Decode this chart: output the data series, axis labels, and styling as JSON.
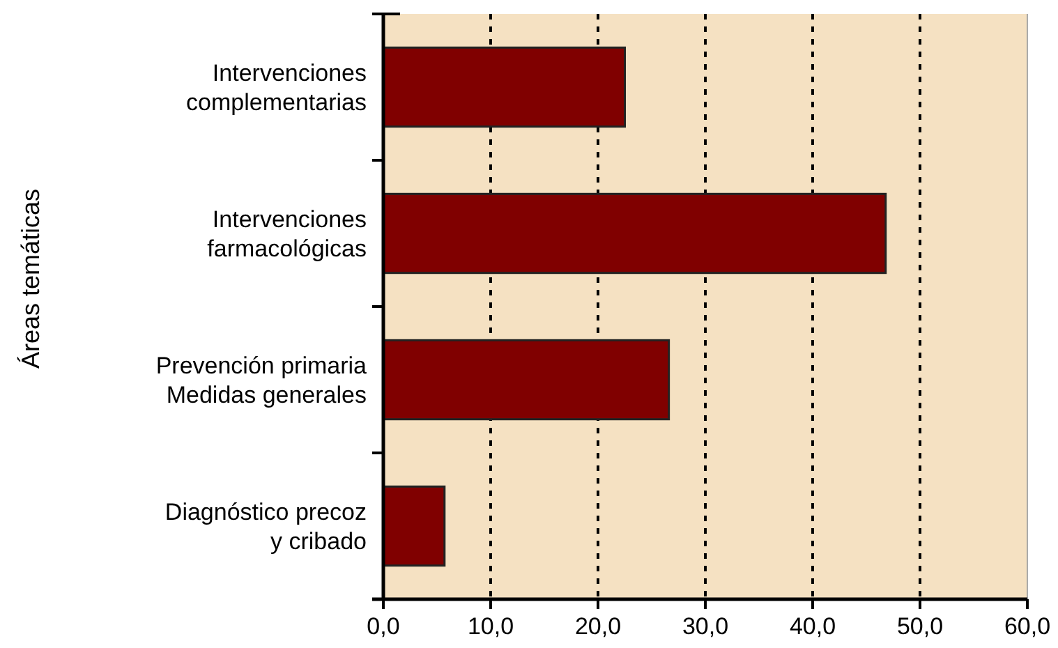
{
  "chart_data": {
    "type": "bar",
    "orientation": "horizontal",
    "ylabel": "Áreas temáticas",
    "categories": [
      "Intervenciones\ncomplementarias",
      "Intervenciones\nfarmacológicas",
      "Prevención primaria\nMedidas generales",
      "Diagnóstico precoz\ny cribado"
    ],
    "values": [
      22.5,
      46.8,
      26.6,
      5.7
    ],
    "color": "#800000",
    "xlim": [
      0,
      60
    ],
    "xticks": [
      {
        "value": 0,
        "label": "0,0"
      },
      {
        "value": 10,
        "label": "10,0"
      },
      {
        "value": 20,
        "label": "20,0"
      },
      {
        "value": 30,
        "label": "30,0"
      },
      {
        "value": 40,
        "label": "40,0"
      },
      {
        "value": 50,
        "label": "50,0"
      },
      {
        "value": 60,
        "label": "60,0"
      }
    ],
    "grid": "x"
  }
}
